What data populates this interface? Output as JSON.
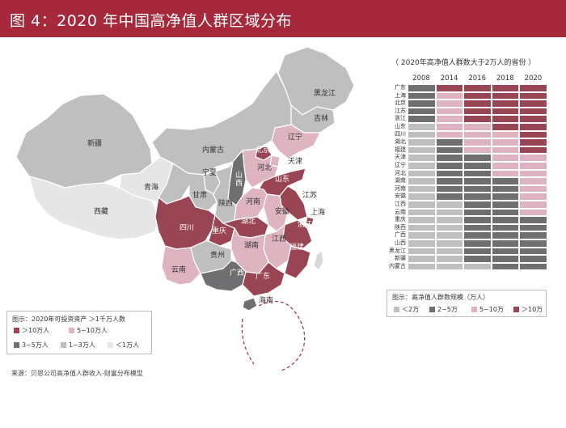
{
  "header": {
    "title": "图 4：2020 年中国高净值人群区域分布"
  },
  "colors": {
    "header_bg": "#a5283b",
    "gt10": "#9a4553",
    "five_ten": "#ddb4bf",
    "two_five": "#6f6f71",
    "lt2": "#bfbfbf",
    "three_five": "#6f6f71",
    "one_three": "#bdbdbd",
    "lt1": "#e6e6e6"
  },
  "map": {
    "provinces": [
      "黑龙江",
      "吉林",
      "辽宁",
      "内蒙古",
      "北京",
      "天津",
      "河北",
      "山西",
      "山东",
      "新疆",
      "青海",
      "西藏",
      "宁夏",
      "甘肃",
      "陕西",
      "河南",
      "江苏",
      "安徽",
      "上海",
      "四川",
      "重庆",
      "湖北",
      "浙江",
      "江西",
      "湖南",
      "福建",
      "云南",
      "贵州",
      "广西",
      "广东",
      "海南"
    ]
  },
  "legend_left": {
    "title": "图示：2020年可投资资产 ＞1千万人数",
    "items": [
      "＞10万人",
      "5~10万人",
      "3~5万人",
      "1~3万人",
      "＜1万人"
    ]
  },
  "source": "来源：贝恩公司高净值人群收入-财富分布模型",
  "chart_data": {
    "type": "heatmap",
    "title": "（ 2020年高净值人群数大于2万人的省份 ）",
    "x": [
      "2008",
      "2014",
      "2016",
      "2018",
      "2020"
    ],
    "y": [
      "广东",
      "上海",
      "北京",
      "江苏",
      "浙江",
      "山东",
      "四川",
      "湖北",
      "福建",
      "天津",
      "辽宁",
      "河北",
      "湖南",
      "河南",
      "安徽",
      "江西",
      "云南",
      "重庆",
      "陕西",
      "广西",
      "山西",
      "黑龙江",
      "新疆",
      "内蒙古"
    ],
    "levels": [
      "＜2万",
      "2~5万",
      "5~10万",
      "＞10万"
    ],
    "values": [
      [
        1,
        3,
        3,
        3,
        3
      ],
      [
        1,
        2,
        3,
        3,
        3
      ],
      [
        1,
        2,
        3,
        3,
        3
      ],
      [
        1,
        2,
        3,
        3,
        3
      ],
      [
        1,
        2,
        3,
        3,
        3
      ],
      [
        0,
        2,
        2,
        3,
        3
      ],
      [
        0,
        2,
        2,
        2,
        3
      ],
      [
        0,
        1,
        2,
        2,
        3
      ],
      [
        0,
        1,
        2,
        2,
        3
      ],
      [
        0,
        1,
        1,
        2,
        2
      ],
      [
        0,
        1,
        1,
        2,
        2
      ],
      [
        0,
        1,
        1,
        2,
        2
      ],
      [
        0,
        1,
        1,
        1,
        2
      ],
      [
        0,
        1,
        1,
        1,
        2
      ],
      [
        0,
        1,
        1,
        1,
        2
      ],
      [
        0,
        0,
        1,
        1,
        2
      ],
      [
        0,
        0,
        1,
        1,
        2
      ],
      [
        0,
        0,
        1,
        1,
        1
      ],
      [
        0,
        0,
        1,
        1,
        1
      ],
      [
        0,
        0,
        1,
        1,
        1
      ],
      [
        0,
        0,
        1,
        1,
        1
      ],
      [
        0,
        0,
        1,
        1,
        1
      ],
      [
        0,
        0,
        1,
        1,
        1
      ],
      [
        0,
        0,
        0,
        1,
        1
      ]
    ]
  },
  "legend_right": {
    "title": "图示：高净值人群数规模（万人）",
    "items": [
      "＜2万",
      "2~5万",
      "5~10万",
      "＞10万"
    ]
  }
}
